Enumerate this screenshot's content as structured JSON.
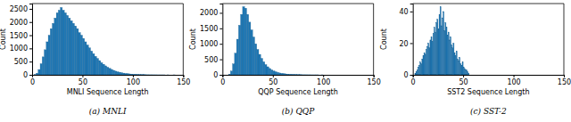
{
  "chart_data": [
    {
      "type": "histogram",
      "title": "(a) MNLI",
      "xlabel": "MNLI Sequence Length",
      "ylabel": "Count",
      "color": "#1f77b4",
      "bins": [
        2,
        4,
        6,
        8,
        10,
        12,
        14,
        16,
        18,
        20,
        22,
        24,
        26,
        28,
        30,
        32,
        34,
        36,
        38,
        40,
        42,
        44,
        46,
        48,
        50,
        52,
        54,
        56,
        58,
        60,
        62,
        64,
        66,
        68,
        70,
        72,
        74,
        76,
        78,
        80,
        82,
        84,
        86,
        88,
        90,
        92,
        94,
        96,
        98,
        100,
        102,
        104,
        106,
        108,
        110,
        112,
        114,
        116,
        118,
        120,
        122,
        124,
        126,
        128,
        130,
        132,
        134,
        136,
        138,
        140,
        142
      ],
      "values": [
        10,
        60,
        200,
        420,
        680,
        950,
        1250,
        1500,
        1750,
        1950,
        2150,
        2350,
        2450,
        2550,
        2450,
        2350,
        2250,
        2150,
        2050,
        1950,
        1850,
        1750,
        1600,
        1500,
        1380,
        1250,
        1130,
        1020,
        900,
        800,
        700,
        620,
        540,
        460,
        400,
        340,
        290,
        245,
        205,
        170,
        140,
        115,
        95,
        78,
        64,
        52,
        42,
        34,
        28,
        22,
        18,
        14,
        11,
        9,
        7,
        5,
        4,
        3,
        3,
        2,
        2,
        1,
        1,
        1,
        1,
        0,
        1,
        0,
        0,
        1
      ],
      "xlim": [
        0,
        150
      ],
      "xticks": [
        0,
        50,
        100,
        150
      ],
      "ylim": [
        0,
        2700
      ],
      "yticks": [
        0,
        500,
        1000,
        1500,
        2000,
        2500
      ]
    },
    {
      "type": "histogram",
      "title": "(b) QQP",
      "xlabel": "QQP Sequence Length",
      "ylabel": "Count",
      "color": "#1f77b4",
      "bins": [
        6,
        8,
        10,
        12,
        14,
        16,
        18,
        20,
        22,
        24,
        26,
        28,
        30,
        32,
        34,
        36,
        38,
        40,
        42,
        44,
        46,
        48,
        50,
        52,
        54,
        56,
        58,
        60,
        62,
        64,
        66,
        68,
        70,
        72,
        74,
        76,
        78,
        80,
        82,
        84,
        86,
        88,
        90,
        92,
        94,
        96,
        98,
        100
      ],
      "values": [
        20,
        120,
        350,
        700,
        1150,
        1600,
        1950,
        2200,
        2150,
        1950,
        1700,
        1450,
        1220,
        1000,
        820,
        660,
        530,
        420,
        330,
        260,
        205,
        160,
        125,
        98,
        77,
        60,
        47,
        37,
        29,
        23,
        18,
        14,
        11,
        9,
        7,
        5,
        4,
        3,
        3,
        2,
        2,
        1,
        1,
        1,
        1,
        0,
        1
      ],
      "xlim": [
        0,
        150
      ],
      "xticks": [
        0,
        50,
        100,
        150
      ],
      "ylim": [
        0,
        2300
      ],
      "yticks": [
        0,
        500,
        1000,
        1500,
        2000
      ]
    },
    {
      "type": "histogram",
      "title": "(c) SST-2",
      "xlabel": "SST2 Sequence Length",
      "ylabel": "Count",
      "color": "#1f77b4",
      "bins": [
        2,
        3,
        4,
        5,
        6,
        7,
        8,
        9,
        10,
        11,
        12,
        13,
        14,
        15,
        16,
        17,
        18,
        19,
        20,
        21,
        22,
        23,
        24,
        25,
        26,
        27,
        28,
        29,
        30,
        31,
        32,
        33,
        34,
        35,
        36,
        37,
        38,
        39,
        40,
        41,
        42,
        43,
        44,
        45,
        46,
        47,
        48,
        49,
        50,
        51,
        52,
        53,
        54,
        55,
        56
      ],
      "values": [
        1,
        2,
        3,
        5,
        6,
        8,
        7,
        10,
        12,
        14,
        13,
        16,
        18,
        20,
        17,
        22,
        24,
        21,
        26,
        30,
        27,
        33,
        35,
        29,
        38,
        43,
        31,
        36,
        40,
        28,
        33,
        30,
        25,
        27,
        22,
        24,
        19,
        17,
        20,
        14,
        12,
        15,
        10,
        9,
        11,
        7,
        6,
        8,
        5,
        4,
        3,
        3,
        2,
        1
      ],
      "xlim": [
        0,
        150
      ],
      "xticks": [
        0,
        50,
        100,
        150
      ],
      "ylim": [
        0,
        45
      ],
      "yticks": [
        0,
        20,
        40
      ]
    }
  ]
}
